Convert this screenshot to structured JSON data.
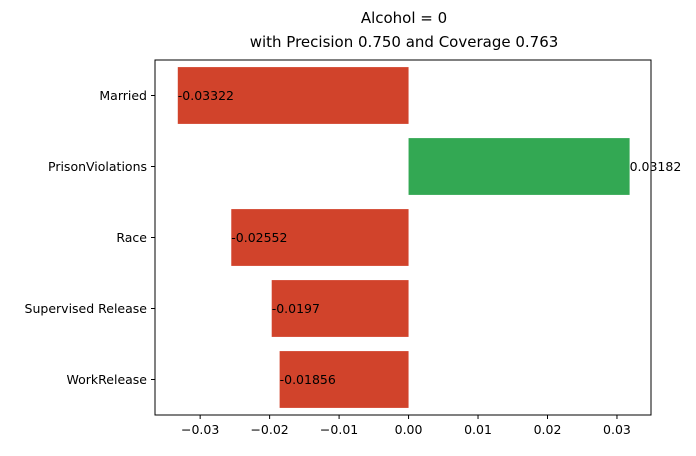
{
  "chart_data": {
    "type": "bar",
    "orientation": "horizontal",
    "title": "Alcohol = 0",
    "subtitle": "with Precision 0.750 and Coverage 0.763",
    "xlabel": "",
    "ylabel": "",
    "categories": [
      "Married",
      "PrisonViolations",
      "Race",
      "Supervised Release",
      "WorkRelease"
    ],
    "values": [
      -0.03322,
      0.03182,
      -0.02552,
      -0.0197,
      -0.01856
    ],
    "value_labels": [
      "-0.03322",
      "0.03182",
      "-0.02552",
      "-0.0197",
      "-0.01856"
    ],
    "xlim": [
      -0.0365,
      0.0349
    ],
    "x_ticks": [
      -0.03,
      -0.02,
      -0.01,
      0.0,
      0.01,
      0.02,
      0.03
    ],
    "x_tick_labels": [
      "−0.03",
      "−0.02",
      "−0.01",
      "0.00",
      "0.01",
      "0.02",
      "0.03"
    ],
    "grid": false,
    "legend": "none",
    "colors": {
      "negative": "#d1432b",
      "positive": "#33a853",
      "axis": "#000000"
    }
  }
}
